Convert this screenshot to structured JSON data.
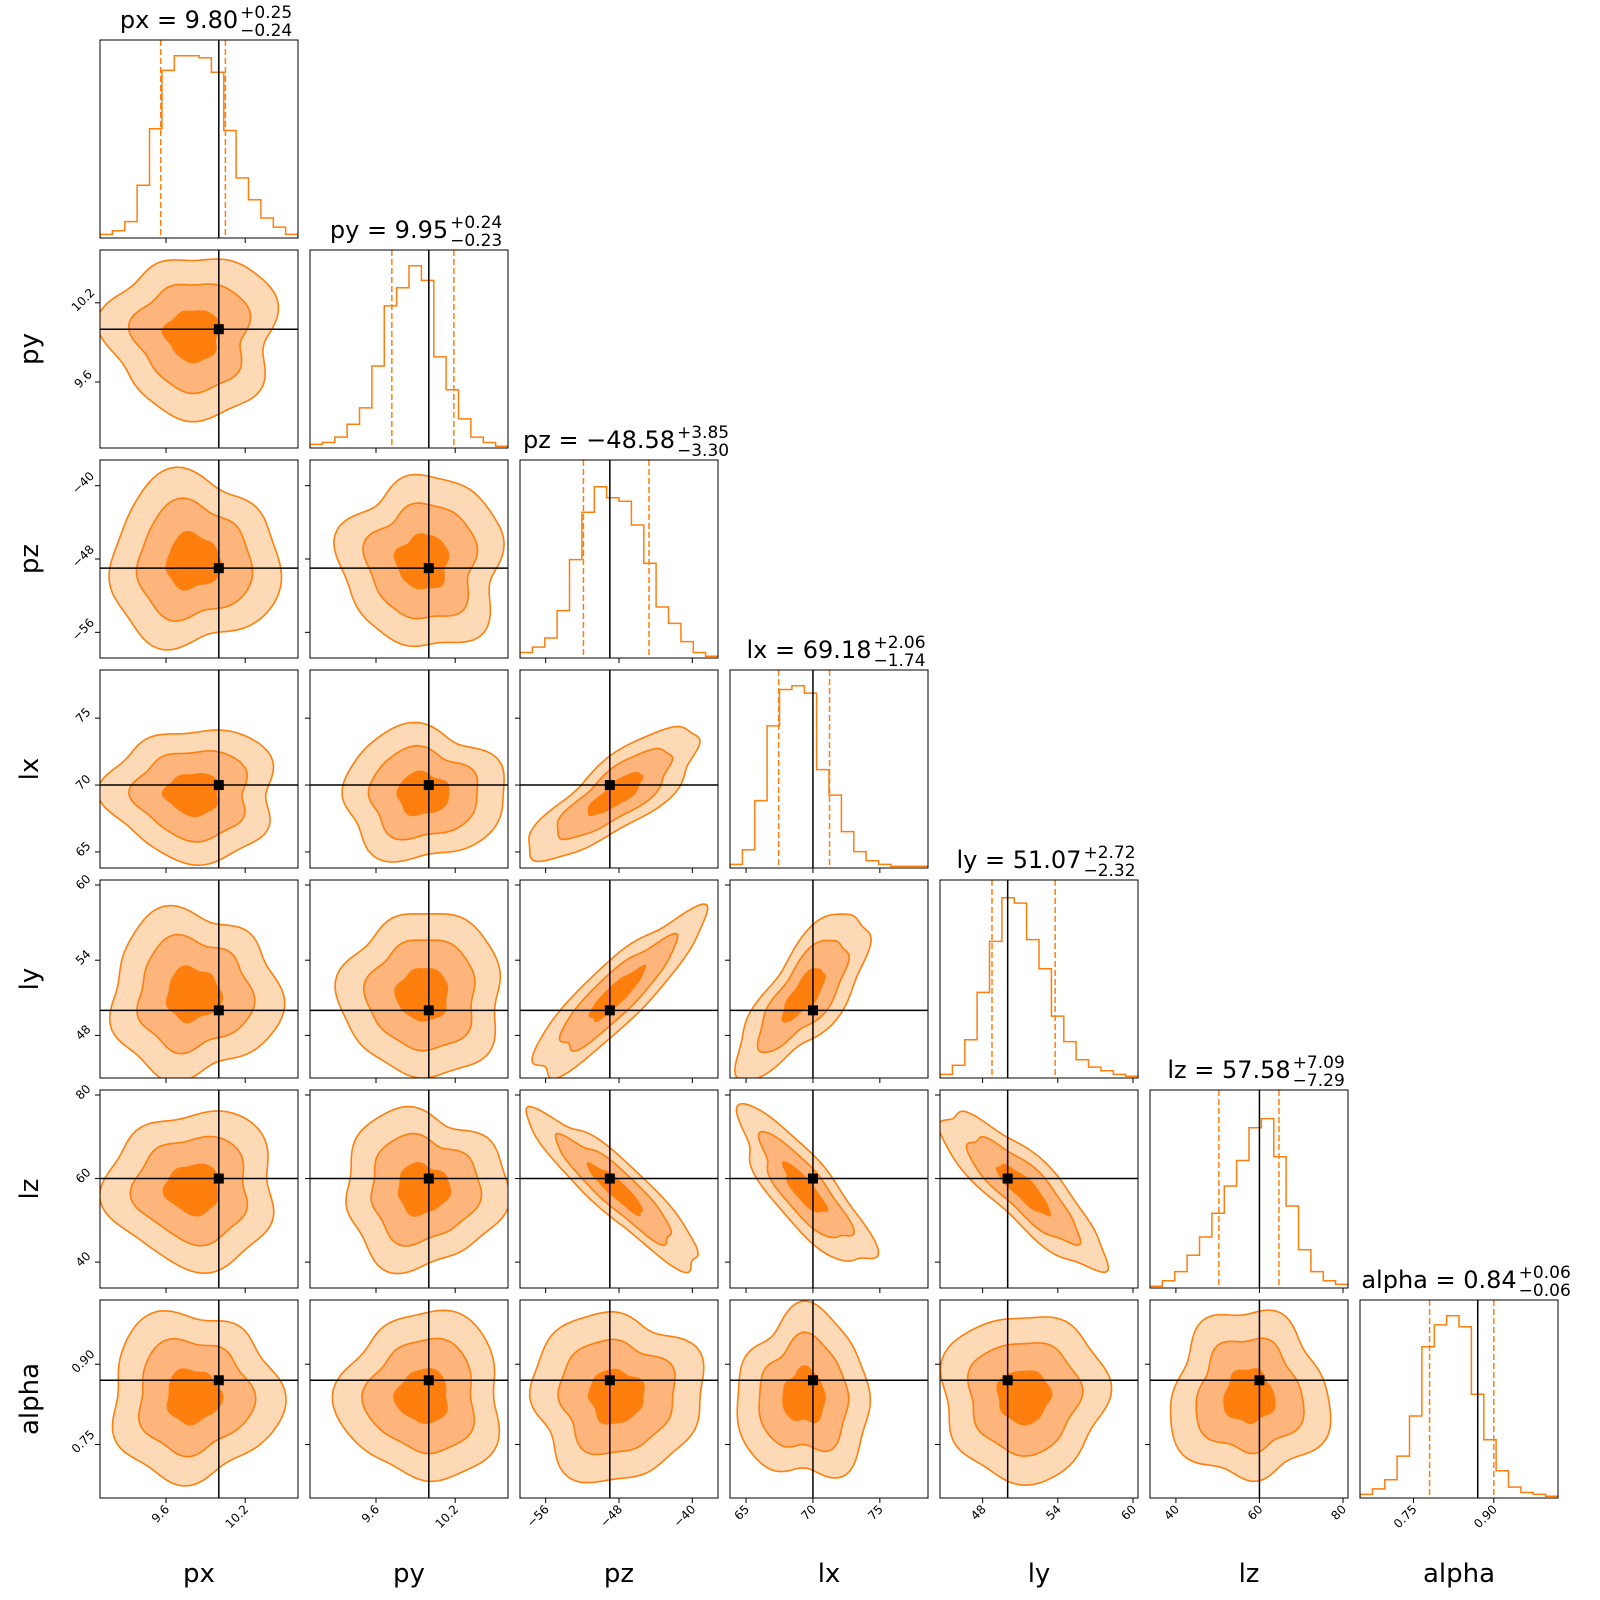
{
  "chart_data": {
    "type": "corner",
    "parameters": [
      "px",
      "py",
      "pz",
      "lx",
      "ly",
      "lz",
      "alpha"
    ],
    "truths": [
      10.0,
      10.0,
      -49.0,
      70.0,
      50.0,
      60.0,
      0.87
    ],
    "titles": [
      {
        "param": "px",
        "median": "9.80",
        "plus": "+0.25",
        "minus": "−0.24"
      },
      {
        "param": "py",
        "median": "9.95",
        "plus": "+0.24",
        "minus": "−0.23"
      },
      {
        "param": "pz",
        "median": "−48.58",
        "plus": "+3.85",
        "minus": "−3.30"
      },
      {
        "param": "lx",
        "median": "69.18",
        "plus": "+2.06",
        "minus": "−1.74"
      },
      {
        "param": "ly",
        "median": "51.07",
        "plus": "+2.72",
        "minus": "−2.32"
      },
      {
        "param": "lz",
        "median": "57.58",
        "plus": "+7.09",
        "minus": "−7.29"
      },
      {
        "param": "alpha",
        "median": "0.84",
        "plus": "+0.06",
        "minus": "−0.06"
      }
    ],
    "ranges": [
      [
        9.1,
        10.6
      ],
      [
        9.1,
        10.6
      ],
      [
        -58.8,
        -37.2
      ],
      [
        63.8,
        78.6
      ],
      [
        44.6,
        60.4
      ],
      [
        33.8,
        81.2
      ],
      [
        0.65,
        1.02
      ]
    ],
    "ticks": [
      [
        {
          "v": 9.6,
          "label": "9.6"
        },
        {
          "v": 10.2,
          "label": "10.2"
        }
      ],
      [
        {
          "v": 9.6,
          "label": "9.6"
        },
        {
          "v": 10.2,
          "label": "10.2"
        }
      ],
      [
        {
          "v": -56,
          "label": "−56"
        },
        {
          "v": -48,
          "label": "−48"
        },
        {
          "v": -40,
          "label": "−40"
        }
      ],
      [
        {
          "v": 65,
          "label": "65"
        },
        {
          "v": 70,
          "label": "70"
        },
        {
          "v": 75,
          "label": "75"
        }
      ],
      [
        {
          "v": 48,
          "label": "48"
        },
        {
          "v": 54,
          "label": "54"
        },
        {
          "v": 60,
          "label": "60"
        }
      ],
      [
        {
          "v": 40,
          "label": "40"
        },
        {
          "v": 60,
          "label": "60"
        },
        {
          "v": 80,
          "label": "80"
        }
      ],
      [
        {
          "v": 0.75,
          "label": "0.75"
        },
        {
          "v": 0.9,
          "label": "0.90"
        }
      ]
    ],
    "quantiles_16_84": [
      [
        9.56,
        10.05
      ],
      [
        9.72,
        10.19
      ],
      [
        -51.88,
        -44.73
      ],
      [
        67.44,
        71.24
      ],
      [
        48.75,
        53.79
      ],
      [
        50.29,
        64.67
      ],
      [
        0.78,
        0.9
      ]
    ],
    "correlations": {
      "pz-lx": 0.8,
      "pz-ly": 0.88,
      "pz-lz": -0.9,
      "lx-ly": 0.75,
      "lx-lz": -0.82,
      "ly-lz": -0.85
    },
    "histograms": [
      [
        0.02,
        0.04,
        0.09,
        0.29,
        0.6,
        0.92,
        1.0,
        1.0,
        0.99,
        0.91,
        0.59,
        0.33,
        0.21,
        0.11,
        0.06,
        0.02
      ],
      [
        0.02,
        0.03,
        0.06,
        0.13,
        0.22,
        0.45,
        0.78,
        0.88,
        1.0,
        0.92,
        0.5,
        0.32,
        0.16,
        0.06,
        0.03,
        0.01
      ],
      [
        0.03,
        0.06,
        0.11,
        0.26,
        0.54,
        0.8,
        0.94,
        0.88,
        0.86,
        0.73,
        0.52,
        0.28,
        0.19,
        0.09,
        0.03,
        0.01
      ],
      [
        0.02,
        0.1,
        0.37,
        0.78,
        0.98,
        1.0,
        0.96,
        0.54,
        0.4,
        0.2,
        0.09,
        0.04,
        0.02,
        0.01,
        0.01,
        0.01
      ],
      [
        0.02,
        0.07,
        0.21,
        0.47,
        0.75,
        0.99,
        0.96,
        0.76,
        0.6,
        0.34,
        0.2,
        0.1,
        0.06,
        0.04,
        0.02,
        0.01
      ],
      [
        0.01,
        0.04,
        0.09,
        0.18,
        0.28,
        0.41,
        0.56,
        0.7,
        0.88,
        0.93,
        0.72,
        0.45,
        0.21,
        0.09,
        0.04,
        0.02
      ],
      [
        0.02,
        0.05,
        0.1,
        0.23,
        0.45,
        0.83,
        0.95,
        1.0,
        0.94,
        0.57,
        0.32,
        0.15,
        0.06,
        0.03,
        0.02,
        0.01
      ]
    ]
  }
}
